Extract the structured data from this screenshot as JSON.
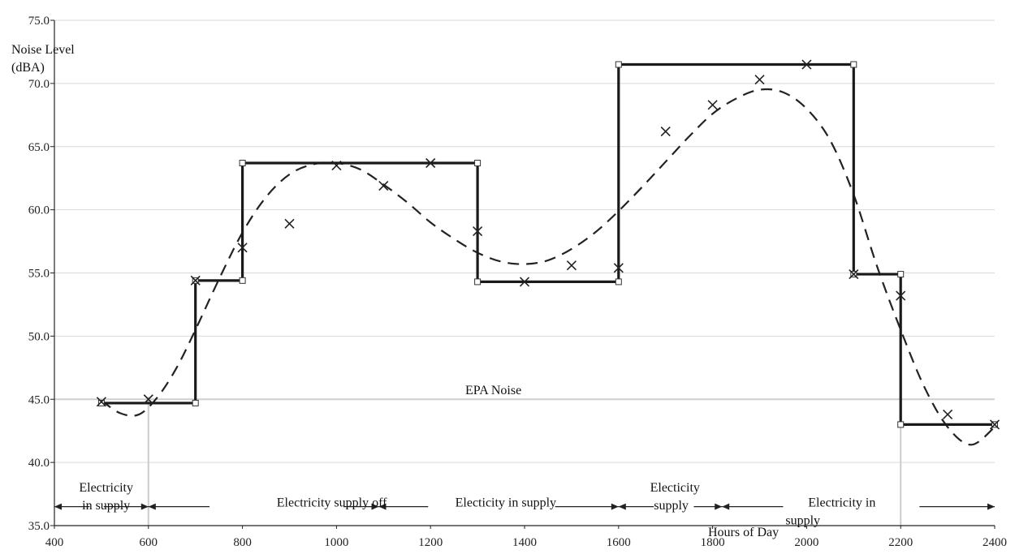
{
  "chart_data": {
    "type": "line",
    "ylabel_lines": [
      "Noise Level",
      "(dBA)"
    ],
    "xlabel": "Hours of Day",
    "xlim": [
      400,
      2400
    ],
    "ylim": [
      35,
      75
    ],
    "x_ticks": [
      400,
      600,
      800,
      1000,
      1200,
      1400,
      1600,
      1800,
      2000,
      2200,
      2400
    ],
    "y_ticks": [
      "35.0",
      "40.0",
      "45.0",
      "50.0",
      "55.0",
      "60.0",
      "65.0",
      "70.0",
      "75.0"
    ],
    "grid": "horizontal",
    "reference_line": {
      "label": "EPA Noise",
      "y": 45.0
    },
    "series": [
      {
        "style": "step",
        "color": "#1a1a1a",
        "points": [
          [
            500,
            44.7
          ],
          [
            700,
            44.7
          ],
          [
            700,
            54.4
          ],
          [
            800,
            54.4
          ],
          [
            800,
            63.7
          ],
          [
            1300,
            63.7
          ],
          [
            1300,
            54.3
          ],
          [
            1600,
            54.3
          ],
          [
            1600,
            71.5
          ],
          [
            2100,
            71.5
          ],
          [
            2100,
            54.9
          ],
          [
            2200,
            54.9
          ],
          [
            2200,
            45.0
          ],
          [
            2200,
            43.0
          ],
          [
            2400,
            43.0
          ]
        ]
      },
      {
        "style": "scatter-x",
        "color": "#1a1a1a",
        "points": [
          [
            500,
            44.8
          ],
          [
            600,
            45.0
          ],
          [
            700,
            54.4
          ],
          [
            800,
            57.0
          ],
          [
            900,
            58.9
          ],
          [
            1000,
            63.5
          ],
          [
            1100,
            61.9
          ],
          [
            1200,
            63.7
          ],
          [
            1300,
            58.3
          ],
          [
            1400,
            54.3
          ],
          [
            1500,
            55.6
          ],
          [
            1600,
            55.4
          ],
          [
            1700,
            66.2
          ],
          [
            1800,
            68.3
          ],
          [
            1900,
            70.3
          ],
          [
            2000,
            71.5
          ],
          [
            2100,
            54.9
          ],
          [
            2200,
            53.2
          ],
          [
            2300,
            43.8
          ],
          [
            2400,
            43.0
          ]
        ]
      },
      {
        "style": "dashed-curve",
        "color": "#1a1a1a",
        "points": [
          [
            500,
            44.9
          ],
          [
            540,
            43.9
          ],
          [
            580,
            43.8
          ],
          [
            620,
            45.2
          ],
          [
            660,
            47.5
          ],
          [
            700,
            50.5
          ],
          [
            750,
            54.5
          ],
          [
            800,
            58.2
          ],
          [
            850,
            61.0
          ],
          [
            900,
            62.8
          ],
          [
            950,
            63.6
          ],
          [
            1000,
            63.7
          ],
          [
            1050,
            63.2
          ],
          [
            1100,
            62.0
          ],
          [
            1150,
            60.6
          ],
          [
            1200,
            59.0
          ],
          [
            1250,
            57.7
          ],
          [
            1300,
            56.6
          ],
          [
            1350,
            55.9
          ],
          [
            1400,
            55.7
          ],
          [
            1450,
            56.0
          ],
          [
            1500,
            56.9
          ],
          [
            1550,
            58.2
          ],
          [
            1600,
            59.9
          ],
          [
            1650,
            61.8
          ],
          [
            1700,
            63.8
          ],
          [
            1750,
            65.8
          ],
          [
            1800,
            67.6
          ],
          [
            1850,
            68.8
          ],
          [
            1900,
            69.5
          ],
          [
            1950,
            69.3
          ],
          [
            2000,
            68.0
          ],
          [
            2050,
            65.5
          ],
          [
            2100,
            61.2
          ],
          [
            2150,
            55.5
          ],
          [
            2200,
            50.5
          ],
          [
            2250,
            46.0
          ],
          [
            2300,
            42.8
          ],
          [
            2350,
            41.4
          ],
          [
            2400,
            42.8
          ]
        ]
      }
    ],
    "step_markers": [
      [
        500,
        44.7
      ],
      [
        700,
        44.7
      ],
      [
        700,
        54.4
      ],
      [
        800,
        54.4
      ],
      [
        800,
        63.7
      ],
      [
        1300,
        63.7
      ],
      [
        1300,
        54.3
      ],
      [
        1600,
        54.3
      ],
      [
        1600,
        71.5
      ],
      [
        2100,
        71.5
      ],
      [
        2100,
        54.9
      ],
      [
        2200,
        54.9
      ],
      [
        2200,
        43.0
      ],
      [
        2400,
        43.0
      ]
    ],
    "vertical_markers": [
      600,
      2200
    ],
    "annotations": [
      {
        "text": "Electricity",
        "x": 510,
        "y": 37.7,
        "anchor": "middle"
      },
      {
        "text": "in supply",
        "x": 510,
        "y": 36.3,
        "anchor": "middle"
      },
      {
        "text": "Electricity supply off",
        "x": 990,
        "y": 36.5,
        "anchor": "middle"
      },
      {
        "text": "Electicity in supply",
        "x": 1360,
        "y": 36.5,
        "anchor": "middle"
      },
      {
        "text": "Electicity",
        "x": 1720,
        "y": 37.7,
        "anchor": "middle"
      },
      {
        "text": "supply",
        "x": 1675,
        "y": 36.3,
        "anchor": "start"
      },
      {
        "text": "Electricity in",
        "x": 2075,
        "y": 36.5,
        "anchor": "middle"
      },
      {
        "text": "supply",
        "x": 1955,
        "y": 35.1,
        "anchor": "start"
      }
    ],
    "period_arrows": [
      {
        "x1": 400,
        "x2": 475,
        "y": 36.5,
        "dir": "left"
      },
      {
        "x1": 505,
        "x2": 600,
        "y": 36.5,
        "dir": "right"
      },
      {
        "x1": 600,
        "x2": 730,
        "y": 36.5,
        "dir": "left"
      },
      {
        "x1": 1015,
        "x2": 1090,
        "y": 36.5,
        "dir": "right"
      },
      {
        "x1": 1090,
        "x2": 1195,
        "y": 36.5,
        "dir": "left"
      },
      {
        "x1": 1465,
        "x2": 1600,
        "y": 36.5,
        "dir": "right"
      },
      {
        "x1": 1600,
        "x2": 1675,
        "y": 36.5,
        "dir": "left"
      },
      {
        "x1": 1760,
        "x2": 1820,
        "y": 36.5,
        "dir": "right"
      },
      {
        "x1": 1820,
        "x2": 1950,
        "y": 36.5,
        "dir": "left"
      },
      {
        "x1": 2240,
        "x2": 2400,
        "y": 36.5,
        "dir": "right"
      }
    ]
  }
}
